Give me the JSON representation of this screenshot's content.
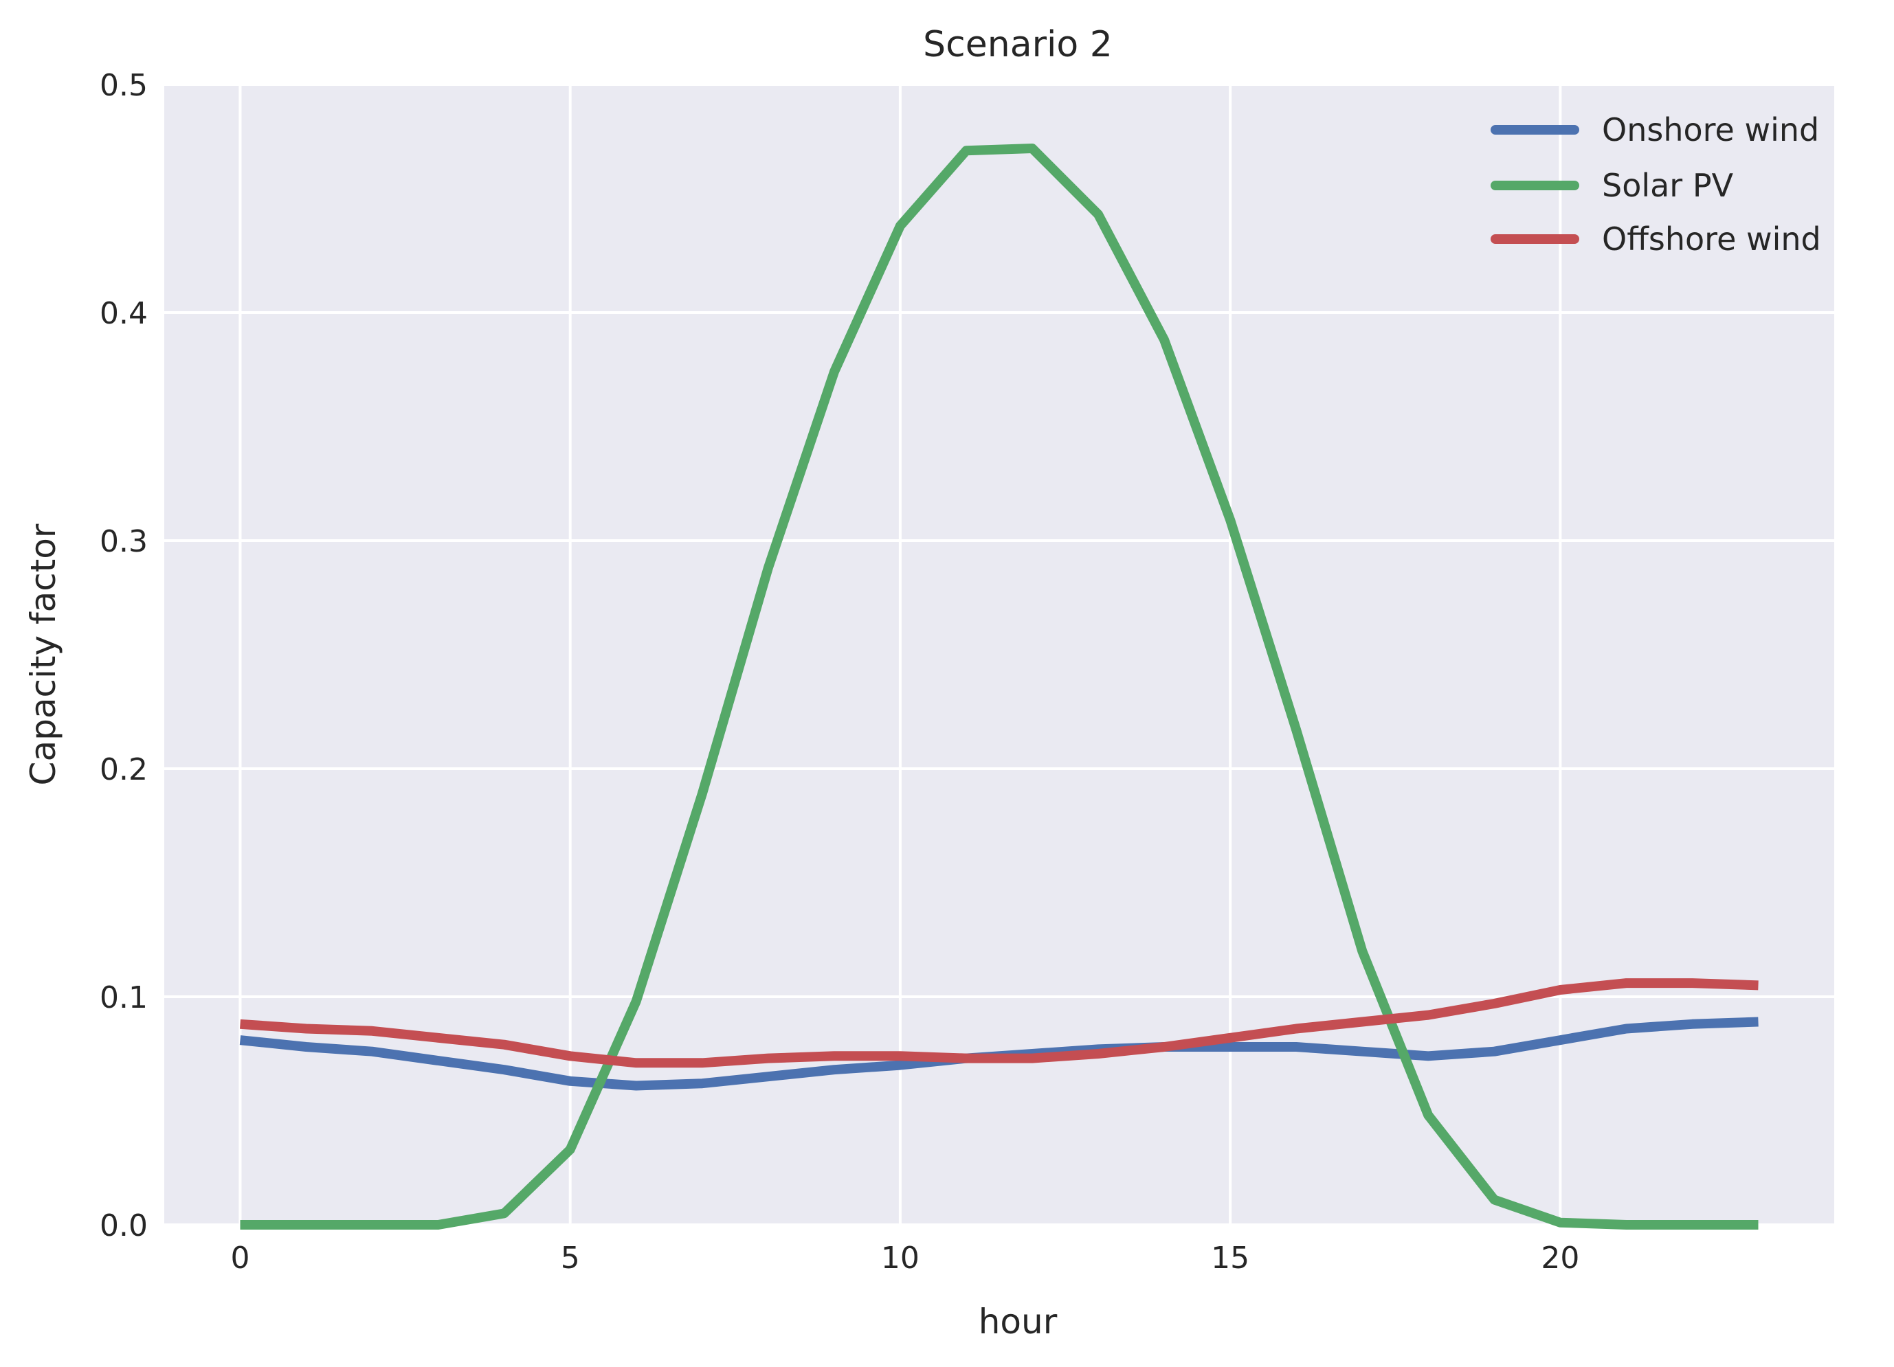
{
  "chart_data": {
    "type": "line",
    "title": "Scenario 2",
    "xlabel": "hour",
    "ylabel": "Capacity factor",
    "xlim": [
      -1.15,
      24.15
    ],
    "ylim": [
      0,
      0.5
    ],
    "xticks": [
      0,
      5,
      10,
      15,
      20
    ],
    "xtick_labels": [
      "0",
      "5",
      "10",
      "15",
      "20"
    ],
    "yticks": [
      0,
      0.1,
      0.2,
      0.3,
      0.4,
      0.5
    ],
    "ytick_labels": [
      "0.0",
      "0.1",
      "0.2",
      "0.3",
      "0.4",
      "0.5"
    ],
    "grid": true,
    "legend_position": "top-right",
    "x": [
      0,
      1,
      2,
      3,
      4,
      5,
      6,
      7,
      8,
      9,
      10,
      11,
      12,
      13,
      14,
      15,
      16,
      17,
      18,
      19,
      20,
      21,
      22,
      23
    ],
    "series": [
      {
        "name": "Onshore wind",
        "color": "#4c72b0",
        "values": [
          0.081,
          0.078,
          0.076,
          0.072,
          0.068,
          0.063,
          0.061,
          0.062,
          0.065,
          0.068,
          0.07,
          0.073,
          0.075,
          0.077,
          0.078,
          0.078,
          0.078,
          0.076,
          0.074,
          0.076,
          0.081,
          0.086,
          0.088,
          0.089
        ]
      },
      {
        "name": "Solar PV",
        "color": "#55a868",
        "values": [
          0.0,
          0.0,
          0.0,
          0.0,
          0.005,
          0.033,
          0.098,
          0.189,
          0.288,
          0.374,
          0.438,
          0.471,
          0.472,
          0.443,
          0.388,
          0.309,
          0.217,
          0.12,
          0.048,
          0.011,
          0.001,
          0.0,
          0.0,
          0.0
        ]
      },
      {
        "name": "Offshore wind",
        "color": "#c44e52",
        "values": [
          0.088,
          0.086,
          0.085,
          0.082,
          0.079,
          0.074,
          0.071,
          0.071,
          0.073,
          0.074,
          0.074,
          0.073,
          0.073,
          0.075,
          0.078,
          0.082,
          0.086,
          0.089,
          0.092,
          0.097,
          0.103,
          0.106,
          0.106,
          0.105
        ]
      }
    ]
  }
}
